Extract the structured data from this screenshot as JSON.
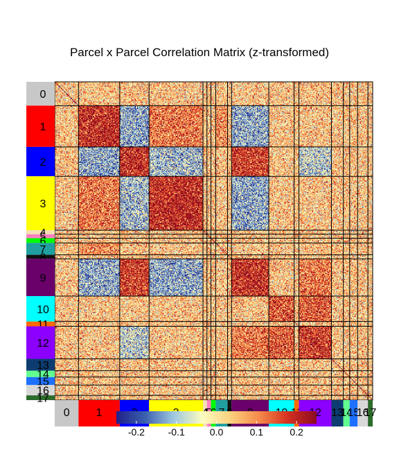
{
  "chart_data": {
    "type": "heatmap",
    "title": "Parcel x Parcel Correlation Matrix (z-transformed)",
    "parcels": [
      {
        "label": "0",
        "size": 30,
        "color": "#c8c8c8"
      },
      {
        "label": "1",
        "size": 52,
        "color": "#ff0000"
      },
      {
        "label": "2",
        "size": 37,
        "color": "#0000ff"
      },
      {
        "label": "3",
        "size": 68,
        "color": "#ffff00"
      },
      {
        "label": "4",
        "size": 5,
        "color": "#f5deb3"
      },
      {
        "label": "5",
        "size": 5,
        "color": "#ff80c0"
      },
      {
        "label": "6",
        "size": 6,
        "color": "#00ff00"
      },
      {
        "label": "7",
        "size": 15,
        "color": "#20a0a0"
      },
      {
        "label": "8",
        "size": 5,
        "color": "#111111"
      },
      {
        "label": "9",
        "size": 47,
        "color": "#6a006a"
      },
      {
        "label": "10",
        "size": 32,
        "color": "#00ffff"
      },
      {
        "label": "11",
        "size": 6,
        "color": "#ff6a00"
      },
      {
        "label": "12",
        "size": 41,
        "color": "#8b00ff"
      },
      {
        "label": "13",
        "size": 15,
        "color": "#0d3d70"
      },
      {
        "label": "14",
        "size": 8,
        "color": "#60ff90"
      },
      {
        "label": "15",
        "size": 10,
        "color": "#1e70ff"
      },
      {
        "label": "16",
        "size": 13,
        "color": "#d8d8d8"
      },
      {
        "label": "17",
        "size": 6,
        "color": "#2c6b2c"
      }
    ],
    "block_means": {
      "within": {
        "1": 0.2,
        "2": 0.2,
        "3": 0.2,
        "9": 0.2,
        "10": 0.15,
        "12": 0.18
      },
      "positive_pairs": [
        [
          "1",
          "3",
          0.12
        ],
        [
          "2",
          "9",
          0.18
        ],
        [
          "9",
          "12",
          0.12
        ],
        [
          "10",
          "12",
          0.15
        ],
        [
          "1",
          "7",
          0.1
        ]
      ],
      "negative_pairs": [
        [
          "1",
          "2",
          -0.12
        ],
        [
          "1",
          "9",
          -0.12
        ],
        [
          "2",
          "3",
          -0.1
        ],
        [
          "3",
          "9",
          -0.12
        ],
        [
          "2",
          "12",
          -0.08
        ]
      ]
    },
    "colorbar": {
      "min": -0.25,
      "max": 0.25,
      "ticks": [
        "-0.2",
        "-0.1",
        "0.0",
        "0.1",
        "0.2"
      ],
      "tick_values": [
        -0.2,
        -0.1,
        0.0,
        0.1,
        0.2
      ],
      "colors": [
        "#20208a",
        "#3a5fae",
        "#9fc8e0",
        "#fcfcc0",
        "#fbd07c",
        "#f58a4a",
        "#d63020",
        "#8b0a20"
      ]
    }
  }
}
